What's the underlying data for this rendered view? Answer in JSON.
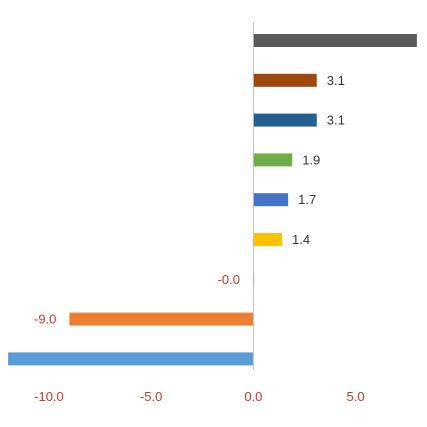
{
  "chart_data": {
    "type": "bar",
    "orientation": "horizontal",
    "xlim": [
      -12.2,
      8.2
    ],
    "x_ticks": [
      "-10.0",
      "-5.0",
      "0.0",
      "5.0"
    ],
    "tick_color": "#C0392B",
    "negative_label_color": "#C0392B",
    "positive_label_color": "#333333",
    "axis_color": "#BFBFBF",
    "bars": [
      {
        "value": 8.0,
        "label": "",
        "color": "#595959"
      },
      {
        "value": 3.1,
        "label": "3.1",
        "color": "#9E480E"
      },
      {
        "value": 3.1,
        "label": "3.1",
        "color": "#255E91"
      },
      {
        "value": 1.9,
        "label": "1.9",
        "color": "#70AD47"
      },
      {
        "value": 1.7,
        "label": "1.7",
        "color": "#4472C4"
      },
      {
        "value": 1.4,
        "label": "1.4",
        "color": "#FFC000"
      },
      {
        "value": -0.02,
        "label": "-0.0",
        "color": "#A5A5A5"
      },
      {
        "value": -9.0,
        "label": "-9.0",
        "color": "#ED7D31"
      },
      {
        "value": -12.0,
        "label": "",
        "color": "#5B9BD5"
      }
    ]
  }
}
